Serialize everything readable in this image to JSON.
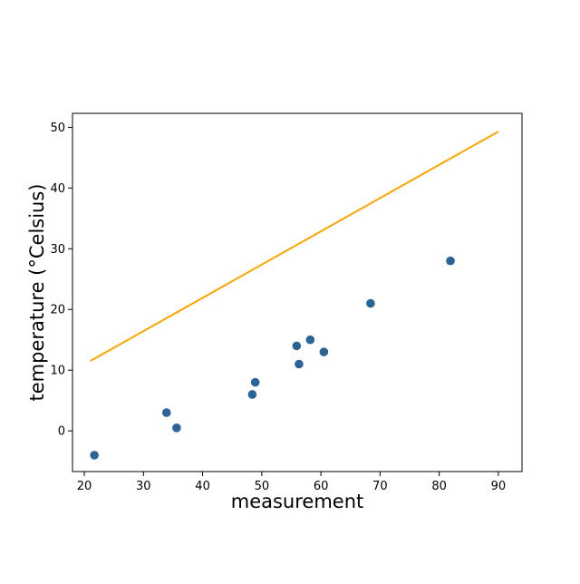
{
  "chart_data": {
    "type": "scatter",
    "xlabel": "measurement",
    "ylabel": "temperature (°Celsius)",
    "xlim": [
      18,
      94
    ],
    "ylim": [
      -6.7,
      52.3
    ],
    "x_ticks": [
      20,
      30,
      40,
      50,
      60,
      70,
      80,
      90
    ],
    "y_ticks": [
      0,
      10,
      20,
      30,
      40,
      50
    ],
    "grid": false,
    "legend": "none",
    "colors": {
      "points": "#2b6496",
      "line": "#ffa500"
    },
    "series": [
      {
        "type": "scatter",
        "points": [
          {
            "x": 21.7,
            "y": -4.0
          },
          {
            "x": 33.9,
            "y": 3.0
          },
          {
            "x": 35.6,
            "y": 0.5
          },
          {
            "x": 48.4,
            "y": 6.0
          },
          {
            "x": 48.9,
            "y": 8.0
          },
          {
            "x": 55.9,
            "y": 14.0
          },
          {
            "x": 56.3,
            "y": 11.0
          },
          {
            "x": 58.2,
            "y": 15.0
          },
          {
            "x": 60.5,
            "y": 13.0
          },
          {
            "x": 68.4,
            "y": 21.0
          },
          {
            "x": 81.9,
            "y": 28.0
          }
        ]
      },
      {
        "type": "line",
        "points": [
          {
            "x": 21.0,
            "y": 11.5
          },
          {
            "x": 90.0,
            "y": 49.3
          }
        ]
      }
    ]
  }
}
